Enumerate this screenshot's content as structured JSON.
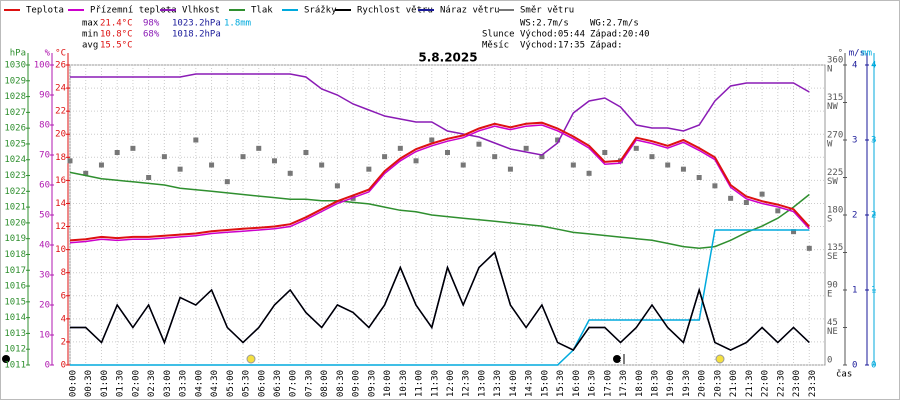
{
  "chart_data": {
    "type": "line",
    "title": "5.8.2025",
    "x_label": "čas",
    "x": [
      "00:00",
      "00:30",
      "01:00",
      "01:30",
      "02:00",
      "02:30",
      "03:00",
      "03:30",
      "04:00",
      "04:30",
      "05:00",
      "05:30",
      "06:00",
      "06:30",
      "07:00",
      "07:30",
      "08:00",
      "08:30",
      "09:00",
      "09:30",
      "10:00",
      "10:30",
      "11:00",
      "11:30",
      "12:00",
      "12:30",
      "13:00",
      "13:30",
      "14:00",
      "14:30",
      "15:00",
      "15:30",
      "16:00",
      "16:30",
      "17:00",
      "17:30",
      "18:00",
      "18:30",
      "19:00",
      "19:30",
      "20:00",
      "20:30",
      "21:00",
      "21:30",
      "22:00",
      "22:30",
      "23:00",
      "23:30"
    ],
    "axes": [
      {
        "unit": "hPa",
        "side": "left",
        "color": "#2f8f2f",
        "lim": [
          1011,
          1030
        ],
        "ticks": [
          1011,
          1012,
          1013,
          1014,
          1015,
          1016,
          1017,
          1018,
          1019,
          1020,
          1021,
          1022,
          1023,
          1024,
          1025,
          1026,
          1027,
          1028,
          1029,
          1030
        ]
      },
      {
        "unit": "%",
        "side": "left",
        "color": "#b01ab0",
        "lim": [
          0,
          100
        ],
        "ticks": [
          0,
          10,
          20,
          30,
          40,
          50,
          60,
          70,
          80,
          90,
          100
        ]
      },
      {
        "unit": "°C",
        "side": "left",
        "color": "#dd1111",
        "lim": [
          0,
          26
        ],
        "ticks": [
          0,
          2,
          4,
          6,
          8,
          10,
          12,
          14,
          16,
          18,
          20,
          22,
          24,
          26
        ]
      },
      {
        "unit": "°",
        "side": "right",
        "color": "#555555",
        "lim": [
          0,
          360
        ],
        "ticks": [
          {
            "value": 0,
            "label": "0"
          },
          {
            "value": 45,
            "label": "45",
            "dir": "NE"
          },
          {
            "value": 90,
            "label": "90",
            "dir": "E"
          },
          {
            "value": 135,
            "label": "135",
            "dir": "SE"
          },
          {
            "value": 180,
            "label": "180",
            "dir": "S"
          },
          {
            "value": 225,
            "label": "225",
            "dir": "SW"
          },
          {
            "value": 270,
            "label": "270",
            "dir": "W"
          },
          {
            "value": 315,
            "label": "315",
            "dir": "NW"
          },
          {
            "value": 360,
            "label": "360",
            "dir": "N"
          }
        ]
      },
      {
        "unit": "m/s",
        "side": "right",
        "color": "#1a1a99",
        "lim": [
          0,
          4
        ],
        "ticks": [
          0,
          1,
          2,
          3,
          4
        ]
      },
      {
        "unit": "mm",
        "side": "right",
        "color": "#00aadd",
        "lim": [
          0,
          4
        ],
        "ticks": [
          0,
          1,
          2,
          3,
          4
        ]
      }
    ],
    "grid": true,
    "series": [
      {
        "name": "Teplota",
        "color": "#dd1111",
        "axis": 2,
        "values": [
          10.8,
          10.9,
          11.1,
          11.0,
          11.1,
          11.1,
          11.2,
          11.3,
          11.4,
          11.6,
          11.7,
          11.8,
          11.9,
          12.0,
          12.2,
          12.8,
          13.5,
          14.2,
          14.7,
          15.2,
          16.8,
          17.9,
          18.7,
          19.2,
          19.6,
          19.9,
          20.5,
          20.9,
          20.6,
          20.9,
          21.0,
          20.5,
          19.8,
          19.0,
          17.6,
          17.7,
          19.7,
          19.4,
          19.0,
          19.5,
          18.8,
          18.0,
          15.6,
          14.6,
          14.2,
          13.9,
          13.5,
          12.0
        ]
      },
      {
        "name": "Přízemní teplota",
        "color": "#cc00cc",
        "axis": 2,
        "values": [
          10.6,
          10.7,
          10.9,
          10.8,
          10.9,
          10.9,
          11.0,
          11.1,
          11.2,
          11.4,
          11.5,
          11.6,
          11.7,
          11.8,
          12.0,
          12.6,
          13.3,
          14.0,
          14.5,
          15.0,
          16.6,
          17.7,
          18.5,
          19.0,
          19.4,
          19.7,
          20.3,
          20.7,
          20.4,
          20.7,
          20.8,
          20.3,
          19.6,
          18.8,
          17.4,
          17.5,
          19.5,
          19.2,
          18.8,
          19.3,
          18.6,
          17.8,
          15.4,
          14.4,
          14.0,
          13.7,
          13.3,
          11.8
        ]
      },
      {
        "name": "Vlhkost",
        "color": "#8a1bb5",
        "axis": 1,
        "values": [
          96,
          96,
          96,
          96,
          96,
          96,
          96,
          96,
          97,
          97,
          97,
          97,
          97,
          97,
          97,
          96,
          92,
          90,
          87,
          85,
          83,
          82,
          81,
          81,
          78,
          77,
          76,
          74,
          72,
          71,
          70,
          74,
          84,
          88,
          89,
          86,
          80,
          79,
          79,
          78,
          80,
          88,
          93,
          94,
          94,
          94,
          94,
          91
        ]
      },
      {
        "name": "Tlak",
        "color": "#2f8f2f",
        "axis": 0,
        "values": [
          1023.2,
          1023.0,
          1022.8,
          1022.7,
          1022.6,
          1022.5,
          1022.4,
          1022.2,
          1022.1,
          1022.0,
          1021.9,
          1021.8,
          1021.7,
          1021.6,
          1021.5,
          1021.5,
          1021.4,
          1021.4,
          1021.3,
          1021.2,
          1021.0,
          1020.8,
          1020.7,
          1020.5,
          1020.4,
          1020.3,
          1020.2,
          1020.1,
          1020.0,
          1019.9,
          1019.8,
          1019.6,
          1019.4,
          1019.3,
          1019.2,
          1019.1,
          1019.0,
          1018.9,
          1018.7,
          1018.5,
          1018.4,
          1018.5,
          1018.9,
          1019.4,
          1019.8,
          1020.3,
          1021.0,
          1021.8
        ]
      },
      {
        "name": "Srážky",
        "color": "#00aadd",
        "axis": 5,
        "values": [
          0,
          0,
          0,
          0,
          0,
          0,
          0,
          0,
          0,
          0,
          0,
          0,
          0,
          0,
          0,
          0,
          0,
          0,
          0,
          0,
          0,
          0,
          0,
          0,
          0,
          0,
          0,
          0,
          0,
          0,
          0,
          0,
          0.2,
          0.6,
          0.6,
          0.6,
          0.6,
          0.6,
          0.6,
          0.6,
          0.6,
          1.8,
          1.8,
          1.8,
          1.8,
          1.8,
          1.8,
          1.8
        ]
      },
      {
        "name": "Rychlost větru",
        "color": "#000000",
        "axis": 4,
        "values": [
          0.5,
          0.5,
          0.3,
          0.8,
          0.5,
          0.8,
          0.3,
          0.9,
          0.8,
          1.0,
          0.5,
          0.3,
          0.5,
          0.8,
          1.0,
          0.7,
          0.5,
          0.8,
          0.7,
          0.5,
          0.8,
          1.3,
          0.8,
          0.5,
          1.3,
          0.8,
          1.3,
          1.5,
          0.8,
          0.5,
          0.8,
          0.3,
          0.2,
          0.5,
          0.5,
          0.3,
          0.5,
          0.8,
          0.5,
          0.3,
          1.0,
          0.3,
          0.2,
          0.3,
          0.5,
          0.3,
          0.5,
          0.3
        ]
      },
      {
        "name": "Náraz větru",
        "color": "#1a1a99",
        "axis": 4,
        "values": [
          0.5,
          0.5,
          0.3,
          0.8,
          0.5,
          0.8,
          0.3,
          0.9,
          0.8,
          1.0,
          0.5,
          0.3,
          0.5,
          0.8,
          1.0,
          0.7,
          0.5,
          0.8,
          0.7,
          0.5,
          0.8,
          1.3,
          0.8,
          0.5,
          1.3,
          0.8,
          1.3,
          1.5,
          0.8,
          0.5,
          0.8,
          0.3,
          0.2,
          0.5,
          0.5,
          0.3,
          0.5,
          0.8,
          0.5,
          0.3,
          1.0,
          0.3,
          0.2,
          0.3,
          0.5,
          0.3,
          0.5,
          0.3
        ]
      },
      {
        "name": "Směr větru",
        "color": "#777777",
        "axis": 3,
        "scatter": true,
        "values": [
          245,
          230,
          240,
          255,
          260,
          225,
          250,
          235,
          270,
          240,
          220,
          250,
          260,
          245,
          230,
          255,
          240,
          215,
          200,
          235,
          250,
          260,
          245,
          270,
          255,
          240,
          265,
          250,
          235,
          260,
          250,
          270,
          240,
          230,
          255,
          245,
          260,
          250,
          240,
          235,
          225,
          215,
          200,
          195,
          205,
          185,
          160,
          140
        ]
      }
    ],
    "stats": [
      {
        "label": "max",
        "items": [
          {
            "text": "21.4°C",
            "color": "#dd1111"
          },
          {
            "text": "98%",
            "color": "#8a1bb5"
          },
          {
            "text": "1023.2hPa",
            "color": "#1a1a99"
          },
          {
            "text": "1.8mm",
            "color": "#00aadd"
          }
        ]
      },
      {
        "label": "min",
        "items": [
          {
            "text": "10.8°C",
            "color": "#dd1111"
          },
          {
            "text": "68%",
            "color": "#8a1bb5"
          },
          {
            "text": "1018.2hPa",
            "color": "#1a1a99"
          }
        ]
      },
      {
        "label": "avg",
        "items": [
          {
            "text": "15.5°C",
            "color": "#dd1111"
          }
        ]
      }
    ],
    "info": [
      [
        "WS:2.7m/s",
        "WG:2.7m/s"
      ],
      [
        "Slunce",
        "Východ:05:44",
        "Západ:20:40"
      ],
      [
        "Měsíc",
        "Východ:17:35",
        "Západ:"
      ]
    ]
  }
}
